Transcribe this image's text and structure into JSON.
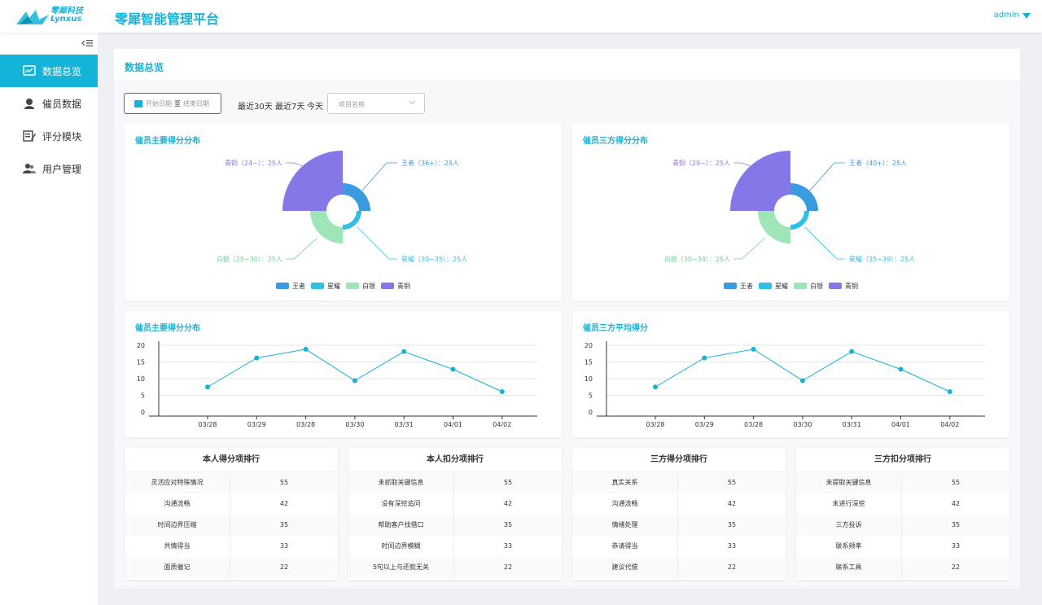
{
  "header": {
    "logo_text_cn": "零犀科技",
    "logo_text_en": "Lynxus",
    "title": "零犀智能管理平台",
    "user": "admin"
  },
  "sidebar": {
    "collapse_icon": "collapse-icon",
    "items": [
      {
        "label": "数据总览",
        "icon": "trend-chart-icon",
        "active": true
      },
      {
        "label": "催员数据",
        "icon": "agent-headset-icon",
        "active": false
      },
      {
        "label": "评分模块",
        "icon": "edit-form-icon",
        "active": false
      },
      {
        "label": "用户管理",
        "icon": "users-icon",
        "active": false
      }
    ]
  },
  "main": {
    "title": "数据总览",
    "filters": {
      "start_placeholder": "开始日期",
      "separator": "至",
      "end_placeholder": "结束日期",
      "quick_ranges": [
        "最近30天",
        "最近7天",
        "今天"
      ],
      "project_placeholder": "项目名称"
    }
  },
  "colors": {
    "accent": "#14b4d9",
    "wangzhe": "#3a9be0",
    "xingyao": "#2ec1e6",
    "baiyin": "#9ee6b8",
    "qingtong": "#8478e8"
  },
  "chart_data": [
    {
      "type": "pie",
      "variant": "nightingale-rose",
      "title": "催员主要得分分布",
      "legend": [
        "王者",
        "星耀",
        "白银",
        "青铜"
      ],
      "labels": [
        "王者（36+）：25人",
        "星耀（30~35）：25人",
        "白银（25~30）：25人",
        "青铜（24~）：25人"
      ],
      "values": [
        25,
        25,
        25,
        25
      ]
    },
    {
      "type": "pie",
      "variant": "nightingale-rose",
      "title": "催员三方得分分布",
      "legend": [
        "王者",
        "星耀",
        "白银",
        "青铜"
      ],
      "labels": [
        "王者（40+）：25人",
        "星耀（35~39）：25人",
        "白银（30~34）：25人",
        "青铜（29~）：25人"
      ],
      "values": [
        25,
        25,
        25,
        25
      ]
    },
    {
      "type": "line",
      "title": "催员主要得分分布",
      "categories": [
        "03/28",
        "03/29",
        "03/28",
        "03/30",
        "03/31",
        "04/01",
        "04/02"
      ],
      "values": [
        7.5,
        16.2,
        18.8,
        9.4,
        18.1,
        12.8,
        6.1
      ],
      "ylim": [
        0,
        20
      ],
      "yticks": [
        "0",
        "5",
        "10",
        "15",
        "20"
      ]
    },
    {
      "type": "line",
      "title": "催员三方平均得分",
      "categories": [
        "03/28",
        "03/29",
        "03/28",
        "03/30",
        "03/31",
        "04/01",
        "04/02"
      ],
      "values": [
        7.5,
        16.2,
        18.8,
        9.4,
        18.1,
        12.8,
        6.1
      ],
      "ylim": [
        0,
        20
      ],
      "yticks": [
        "0",
        "5",
        "10",
        "15",
        "20"
      ]
    }
  ],
  "rankings": [
    {
      "title": "本人得分项排行",
      "rows": [
        {
          "name": "灵活应对特殊情况",
          "value": "55"
        },
        {
          "name": "沟通流畅",
          "value": "42"
        },
        {
          "name": "时间边界压缩",
          "value": "35"
        },
        {
          "name": "共情得当",
          "value": "33"
        },
        {
          "name": "面质催记",
          "value": "22"
        }
      ]
    },
    {
      "title": "本人扣分项排行",
      "rows": [
        {
          "name": "未抓取关键信息",
          "value": "55"
        },
        {
          "name": "没有深挖追问",
          "value": "42"
        },
        {
          "name": "帮助客户找借口",
          "value": "35"
        },
        {
          "name": "时间边界模糊",
          "value": "33"
        },
        {
          "name": "5句以上与还款无关",
          "value": "22"
        }
      ]
    },
    {
      "title": "三方得分项排行",
      "rows": [
        {
          "name": "真实关系",
          "value": "55"
        },
        {
          "name": "沟通流畅",
          "value": "42"
        },
        {
          "name": "情绪处理",
          "value": "35"
        },
        {
          "name": "恭请得当",
          "value": "33"
        },
        {
          "name": "建议代偿",
          "value": "22"
        }
      ]
    },
    {
      "title": "三方扣分项排行",
      "rows": [
        {
          "name": "未提取关键信息",
          "value": "55"
        },
        {
          "name": "未进行深挖",
          "value": "42"
        },
        {
          "name": "三方投诉",
          "value": "35"
        },
        {
          "name": "联系频率",
          "value": "33"
        },
        {
          "name": "联系工具",
          "value": "22"
        }
      ]
    }
  ]
}
